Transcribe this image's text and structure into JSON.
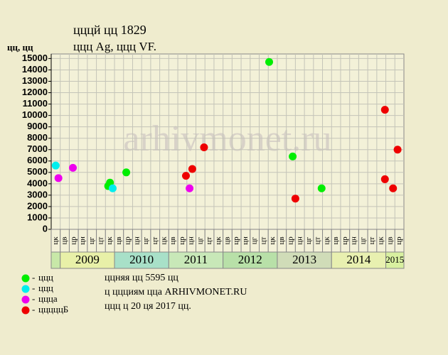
{
  "chart_data": {
    "type": "scatter",
    "title": "цццй цц 1829",
    "subtitle": "ццц Ag, ццц VF.",
    "y_label": "цц, цц",
    "watermark": "arhivmonet.ru",
    "xlim": [
      0,
      39
    ],
    "ylim": [
      0,
      15400
    ],
    "yticks": [
      0,
      1000,
      2000,
      3000,
      4000,
      5000,
      6000,
      7000,
      8000,
      9000,
      10000,
      11000,
      12000,
      13000,
      14000,
      15000
    ],
    "grid": true,
    "period_groups": [
      {
        "label": null,
        "color": "#c8e8a8",
        "periods": [
          "цк"
        ]
      },
      {
        "label": "2009",
        "color": "#e8f0a8",
        "periods": [
          "цв",
          "цр",
          "цн",
          "цг",
          "цт",
          "цк"
        ]
      },
      {
        "label": "2010",
        "color": "#a8e0c8",
        "periods": [
          "цв",
          "цр",
          "цн",
          "цг",
          "цт",
          "цк"
        ]
      },
      {
        "label": "2011",
        "color": "#c8e8b8",
        "periods": [
          "цв",
          "цр",
          "цн",
          "цг",
          "цт",
          "цк"
        ]
      },
      {
        "label": "2012",
        "color": "#b8e0a8",
        "periods": [
          "цв",
          "цр",
          "цн",
          "цг",
          "цт",
          "цк"
        ]
      },
      {
        "label": "2013",
        "color": "#d0dcb8",
        "periods": [
          "цв",
          "цр",
          "цн",
          "цг",
          "цт",
          "цк"
        ]
      },
      {
        "label": "2014",
        "color": "#e8f0b0",
        "periods": [
          "цв",
          "цр",
          "цн",
          "цг",
          "цт",
          "цк"
        ]
      },
      {
        "label": "2015",
        "color": "#d8f0a0",
        "periods": [
          "цв",
          "цр"
        ]
      }
    ],
    "series": [
      {
        "name": "ццц",
        "color": "#00ee00",
        "x": [
          24.1,
          6.3,
          6.5,
          8.3,
          26.7,
          29.9
        ],
        "values": [
          14700,
          3800,
          4100,
          5000,
          6400,
          3600
        ]
      },
      {
        "name": "ццц",
        "color": "#00eeee",
        "x": [
          0.5,
          6.8
        ],
        "values": [
          5600,
          3600
        ]
      },
      {
        "name": "ццца",
        "color": "#ee00ee",
        "x": [
          0.8,
          2.4,
          15.3
        ],
        "values": [
          4500,
          5400,
          3600
        ]
      },
      {
        "name": "цццццБ",
        "color": "#ee0000",
        "x": [
          14.9,
          15.6,
          16.9,
          27.0,
          36.9,
          36.9,
          37.8,
          38.3
        ],
        "values": [
          4700,
          5300,
          7200,
          2700,
          10500,
          4400,
          3600,
          7000
        ]
      }
    ],
    "notes": [
      "ццняя цц 5595 цц",
      "ц ццциям цца ARHIVMONET.RU",
      "ццц ц 20 ця 2017 цц."
    ]
  }
}
